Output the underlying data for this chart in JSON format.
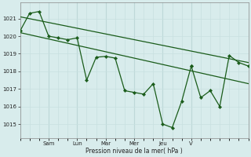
{
  "background_color": "#d8ecec",
  "grid_color_minor": "#c8e0e0",
  "grid_color_major": "#a8c8c8",
  "line_color": "#1a5c1a",
  "marker_color": "#1a5c1a",
  "ylabel": "Pression niveau de la mer( hPa )",
  "ylim": [
    1014.2,
    1021.9
  ],
  "yticks": [
    1015,
    1016,
    1017,
    1018,
    1019,
    1020,
    1021
  ],
  "day_labels": [
    "Sam",
    "Lun",
    "Mar",
    "Mer",
    "Jeu",
    "V"
  ],
  "day_positions": [
    3.0,
    6.0,
    9.0,
    12.0,
    15.0,
    18.0
  ],
  "day_vlines": [
    3.0,
    6.0,
    9.0,
    12.0,
    15.0,
    18.0
  ],
  "series1": {
    "x": [
      0,
      1,
      2,
      3,
      4,
      5,
      6,
      7,
      8,
      9,
      10,
      11,
      12,
      13,
      14,
      15,
      16,
      17,
      18
    ],
    "y": [
      1020.3,
      1021.3,
      1021.4,
      1020.0,
      1019.9,
      1019.8,
      1019.9,
      1017.5,
      1018.8,
      1018.85,
      1018.75,
      1016.9,
      1016.8,
      1016.7,
      1017.3,
      1015.0,
      1014.8,
      1016.3,
      1018.3
    ]
  },
  "series2_points": {
    "x": [
      18,
      19,
      20,
      21,
      22,
      23,
      24
    ],
    "y": [
      1018.3,
      1016.5,
      1016.9,
      1016.0,
      1018.9,
      1018.5,
      1018.3
    ]
  },
  "trend_line1": {
    "x": [
      0,
      24
    ],
    "y": [
      1021.1,
      1018.5
    ]
  },
  "trend_line2": {
    "x": [
      0,
      24
    ],
    "y": [
      1020.2,
      1017.3
    ]
  },
  "xlim": [
    0,
    24
  ],
  "figsize": [
    3.2,
    2.0
  ],
  "dpi": 100
}
